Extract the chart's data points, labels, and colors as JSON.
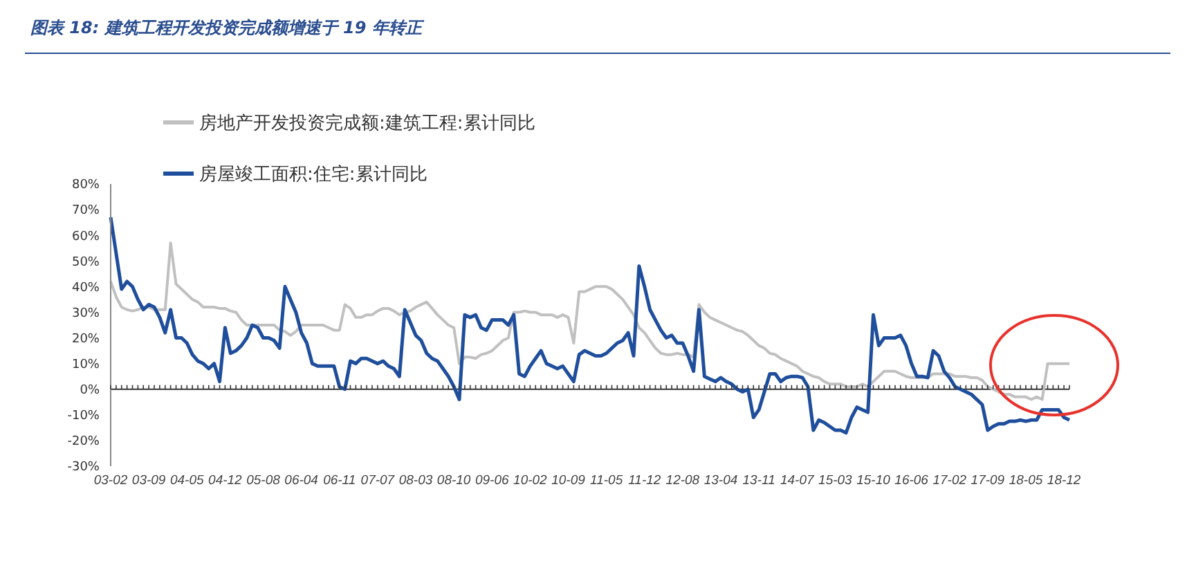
{
  "chart_data": {
    "type": "line",
    "title": "图表 18: 建筑工程开发投资完成额增速于 19 年转正",
    "categories": [
      "03-02",
      null,
      null,
      null,
      null,
      null,
      null,
      "03-09",
      null,
      null,
      null,
      null,
      null,
      null,
      "04-05",
      null,
      null,
      null,
      null,
      null,
      null,
      "04-12",
      null,
      null,
      null,
      null,
      null,
      null,
      "05-08",
      null,
      null,
      null,
      null,
      null,
      null,
      "06-04",
      null,
      null,
      null,
      null,
      null,
      null,
      "06-11",
      null,
      null,
      null,
      null,
      null,
      null,
      "07-07",
      null,
      null,
      null,
      null,
      null,
      null,
      "08-03",
      null,
      null,
      null,
      null,
      null,
      null,
      "08-10",
      null,
      null,
      null,
      null,
      null,
      null,
      "09-06",
      null,
      null,
      null,
      null,
      null,
      null,
      "10-02",
      null,
      null,
      null,
      null,
      null,
      null,
      "10-09",
      null,
      null,
      null,
      null,
      null,
      null,
      "11-05",
      null,
      null,
      null,
      null,
      null,
      null,
      "11-12",
      null,
      null,
      null,
      null,
      null,
      null,
      "12-08",
      null,
      null,
      null,
      null,
      null,
      null,
      "13-04",
      null,
      null,
      null,
      null,
      null,
      null,
      "13-11",
      null,
      null,
      null,
      null,
      null,
      null,
      "14-07",
      null,
      null,
      null,
      null,
      null,
      null,
      "15-03",
      null,
      null,
      null,
      null,
      null,
      null,
      "15-10",
      null,
      null,
      null,
      null,
      null,
      null,
      "16-06",
      null,
      null,
      null,
      null,
      null,
      null,
      "17-02",
      null,
      null,
      null,
      null,
      null,
      null,
      "17-09",
      null,
      null,
      null,
      null,
      null,
      null,
      "18-05",
      null,
      null,
      null,
      null,
      null,
      null,
      "18-12",
      null
    ],
    "series": [
      {
        "name": "房地产开发投资完成额:建筑工程:累计同比",
        "color": "#c0c0c0",
        "values": [
          42,
          36,
          32,
          31,
          30.5,
          31,
          32,
          32,
          31,
          31,
          31,
          57,
          41,
          39,
          37,
          35,
          34,
          32,
          32,
          32,
          31.5,
          31.5,
          30.5,
          30,
          27,
          25,
          25,
          25,
          25,
          25,
          25,
          23,
          22.5,
          21,
          22.5,
          25,
          25,
          25,
          25,
          25,
          24,
          23,
          23,
          33,
          31.5,
          28,
          28,
          29,
          29,
          30.5,
          31.5,
          31.5,
          30.5,
          29,
          30,
          30.5,
          32,
          33,
          34,
          31.5,
          29,
          27,
          25,
          24,
          10,
          12.5,
          12.5,
          12,
          13.5,
          14,
          15,
          17,
          19,
          20,
          30,
          30,
          30.5,
          30,
          30,
          29,
          29,
          29,
          28,
          29,
          28,
          18,
          38,
          38,
          39,
          40,
          40,
          40,
          39,
          37,
          35,
          32,
          29,
          24,
          22,
          19,
          16,
          14,
          13.5,
          13.5,
          14,
          13.5,
          13.5,
          12.5,
          33,
          30,
          28,
          27,
          26,
          25,
          24,
          23,
          22.5,
          21,
          19,
          17,
          16,
          14,
          13.5,
          12,
          11,
          10,
          9,
          7,
          6,
          5,
          4.5,
          3,
          2,
          2,
          2,
          1,
          1,
          1,
          2,
          1,
          3,
          5,
          7,
          7,
          7,
          6,
          5,
          4.5,
          4.5,
          4.5,
          4.5,
          6,
          6,
          6,
          6,
          5,
          5,
          5,
          4.5,
          4.5,
          3.5,
          1,
          0,
          -1,
          -2,
          -2,
          -3,
          -3,
          -3,
          -4,
          -3,
          -4,
          10,
          10,
          10,
          10,
          10
        ]
      },
      {
        "name": "房屋竣工面积:住宅:累计同比",
        "color": "#1f4e9c",
        "values": [
          67,
          53,
          39,
          42,
          40,
          35,
          31,
          33,
          32,
          28,
          22,
          31,
          20,
          20,
          18,
          13.5,
          11,
          10,
          8,
          10,
          3,
          24,
          14,
          15,
          17,
          20,
          25,
          24,
          20,
          20,
          19,
          16,
          40,
          35,
          30,
          22,
          18,
          10,
          9,
          9,
          9,
          9,
          1,
          0,
          11,
          10,
          12,
          12,
          11,
          10,
          11,
          9,
          8,
          5,
          31,
          26,
          21,
          19,
          14,
          12,
          11,
          8,
          5,
          1,
          -4,
          29,
          28,
          29,
          24,
          23,
          27,
          27,
          27,
          25,
          29,
          6,
          5,
          9,
          12,
          15,
          10,
          9,
          8,
          9,
          6,
          3,
          13.5,
          15,
          14,
          13,
          13,
          14,
          16,
          18,
          19,
          22,
          13,
          48,
          40,
          31,
          27,
          23,
          20,
          21,
          18,
          18,
          13,
          7,
          31,
          5,
          4,
          3,
          4.5,
          3,
          2,
          0,
          -1,
          0,
          -11,
          -8,
          -1,
          6,
          6,
          3,
          4.5,
          5,
          5,
          4.5,
          1,
          -16,
          -12,
          -13,
          -14.5,
          -16,
          -16,
          -17,
          -11,
          -7,
          -8,
          -9,
          29,
          17,
          20,
          20,
          20,
          21,
          17,
          10,
          5,
          5,
          4.5,
          15,
          13,
          7,
          4.5,
          1,
          0,
          -1,
          -2,
          -4,
          -6,
          -16,
          -14.5,
          -13.5,
          -13.5,
          -12.5,
          -12.5,
          -12,
          -12.5,
          -12,
          -12,
          -8,
          -8,
          -8,
          -8,
          -11,
          -12
        ]
      }
    ],
    "ylim": [
      -30,
      80
    ],
    "yticks": [
      {
        "value": -30,
        "label": "-30%"
      },
      {
        "value": -20,
        "label": "-20%"
      },
      {
        "value": -10,
        "label": "-10%"
      },
      {
        "value": 0,
        "label": "0%"
      },
      {
        "value": 10,
        "label": "10%"
      },
      {
        "value": 20,
        "label": "20%"
      },
      {
        "value": 30,
        "label": "30%"
      },
      {
        "value": 40,
        "label": "40%"
      },
      {
        "value": 50,
        "label": "50%"
      },
      {
        "value": 60,
        "label": "60%"
      },
      {
        "value": 70,
        "label": "70%"
      },
      {
        "value": 80,
        "label": "80%"
      }
    ],
    "legend": "top left",
    "marker": "none",
    "line_style": "solid"
  }
}
